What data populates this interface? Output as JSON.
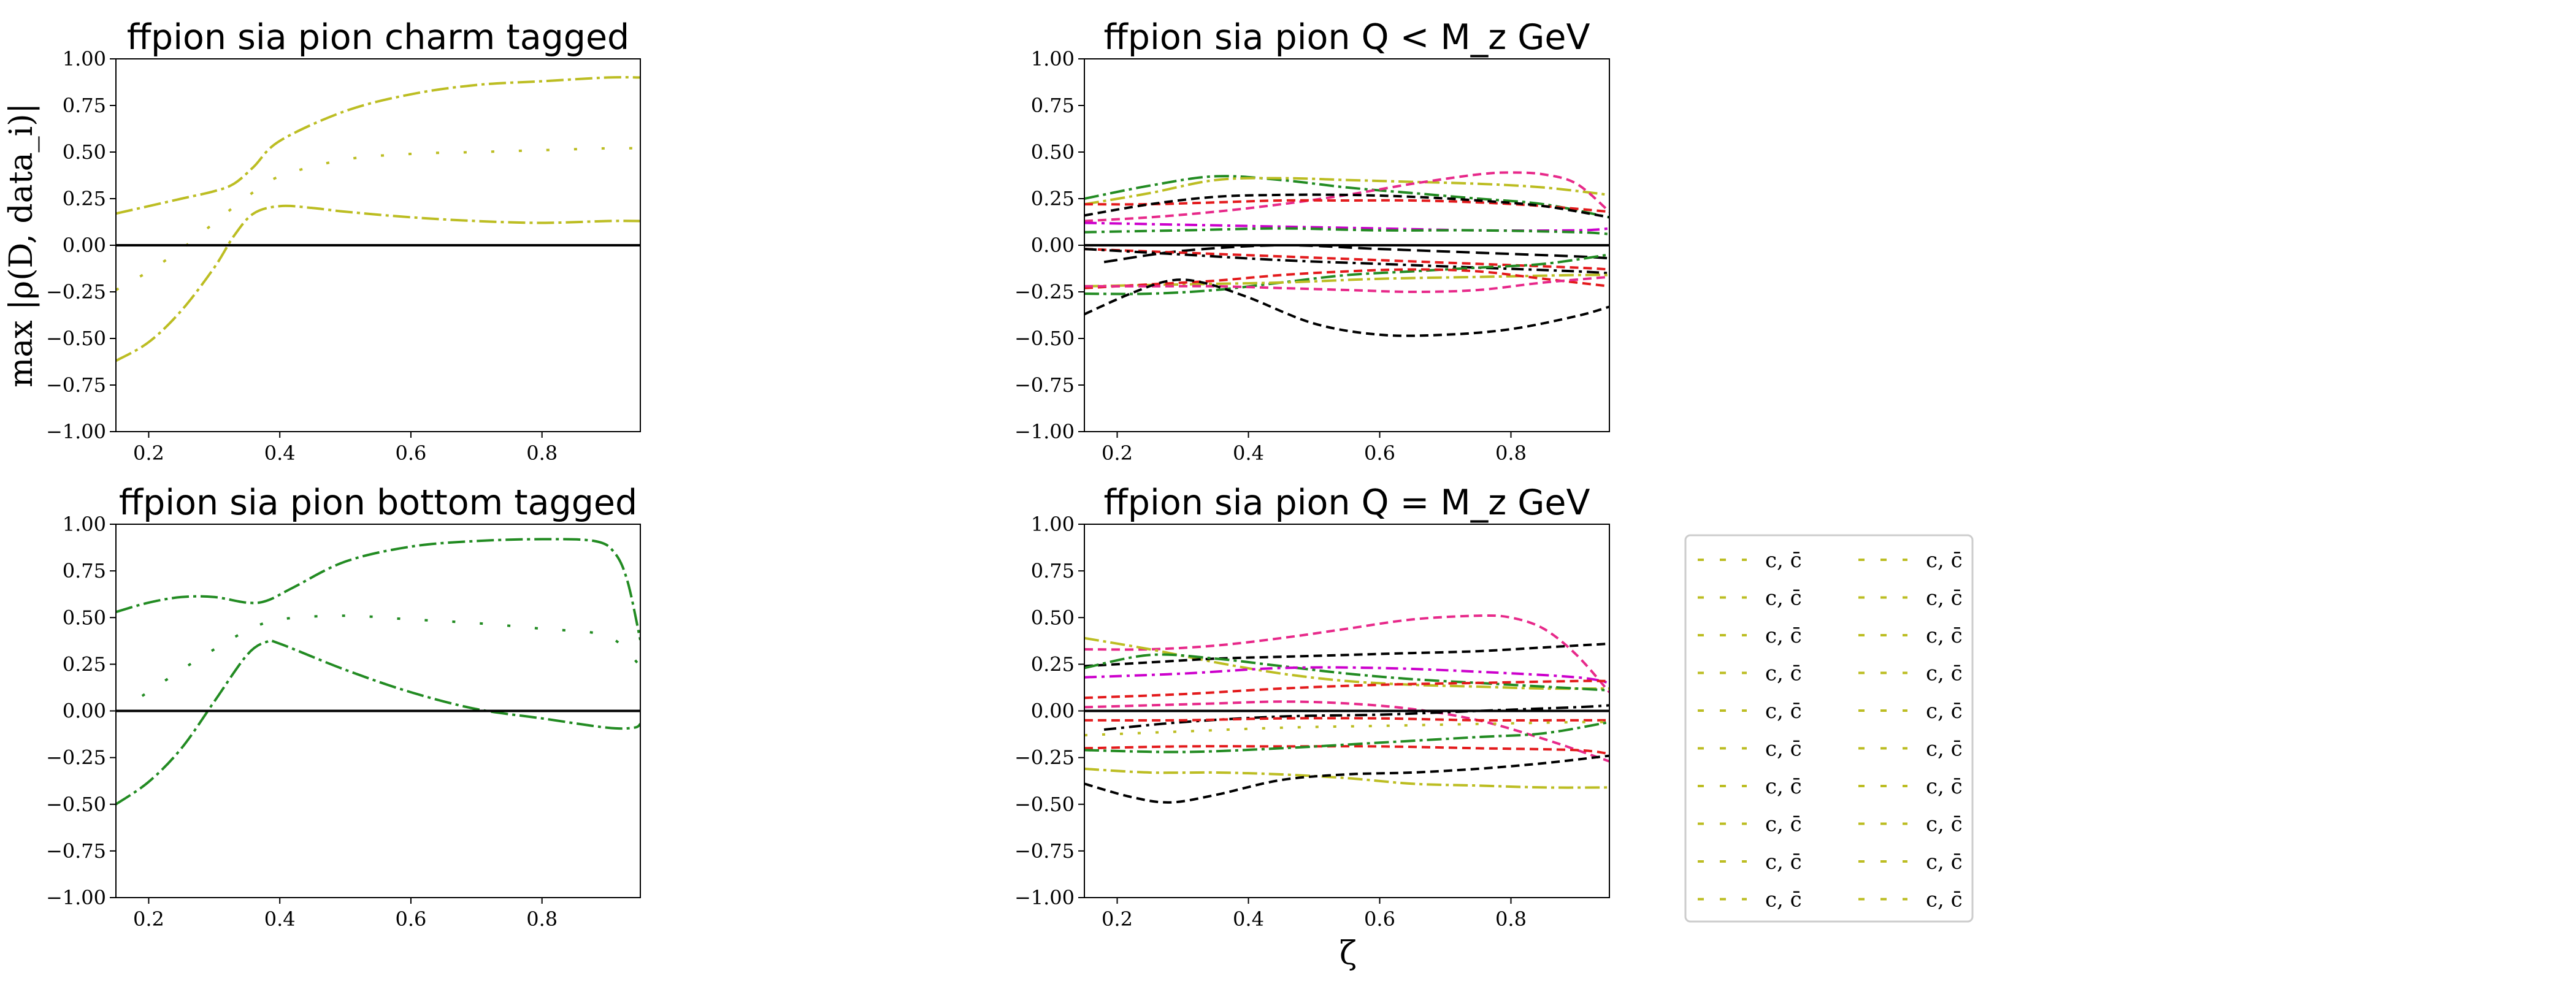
{
  "figure": {
    "ylabel": "max |ρ(D, data_i)|",
    "xlabel": "ζ"
  },
  "chart_data": [
    {
      "type": "line",
      "title": "ffpion sia pion charm tagged",
      "xlim": [
        0.15,
        0.95
      ],
      "ylim": [
        -1.0,
        1.0
      ],
      "xticks": [
        "0.2",
        "0.4",
        "0.6",
        "0.8"
      ],
      "yticks": [
        "−1.00",
        "−0.75",
        "−0.50",
        "−0.25",
        "0.00",
        "0.25",
        "0.50",
        "0.75",
        "1.00"
      ],
      "zero_line": true,
      "series": [
        {
          "color": "#bcbd22",
          "dash": "28,7,5,7",
          "x": [
            0.15,
            0.2,
            0.25,
            0.3,
            0.33,
            0.36,
            0.4,
            0.5,
            0.6,
            0.7,
            0.8,
            0.9,
            0.95
          ],
          "y": [
            0.17,
            0.21,
            0.25,
            0.29,
            0.33,
            0.42,
            0.56,
            0.72,
            0.81,
            0.86,
            0.88,
            0.9,
            0.9
          ]
        },
        {
          "color": "#bcbd22",
          "dash": "5,40",
          "x": [
            0.15,
            0.2,
            0.25,
            0.3,
            0.35,
            0.4,
            0.5,
            0.6,
            0.7,
            0.8,
            0.9,
            0.95
          ],
          "y": [
            -0.24,
            -0.14,
            -0.02,
            0.12,
            0.26,
            0.37,
            0.46,
            0.49,
            0.5,
            0.51,
            0.52,
            0.52
          ]
        },
        {
          "color": "#bcbd22",
          "dash": "28,7,5,7",
          "x": [
            0.15,
            0.2,
            0.25,
            0.3,
            0.33,
            0.36,
            0.4,
            0.45,
            0.5,
            0.6,
            0.7,
            0.8,
            0.9,
            0.95
          ],
          "y": [
            -0.62,
            -0.52,
            -0.35,
            -0.12,
            0.05,
            0.17,
            0.21,
            0.2,
            0.18,
            0.15,
            0.13,
            0.12,
            0.13,
            0.13
          ]
        }
      ]
    },
    {
      "type": "line",
      "title": "ffpion sia pion Q < M_z GeV",
      "xlim": [
        0.15,
        0.95
      ],
      "ylim": [
        -1.0,
        1.0
      ],
      "xticks": [
        "0.2",
        "0.4",
        "0.6",
        "0.8"
      ],
      "yticks": [
        "−1.00",
        "−0.75",
        "−0.50",
        "−0.25",
        "0.00",
        "0.25",
        "0.50",
        "0.75",
        "1.00"
      ],
      "zero_line": true,
      "series": [
        {
          "color": "#228B22",
          "dash": "24,7,5,7",
          "x": [
            0.15,
            0.25,
            0.35,
            0.45,
            0.55,
            0.65,
            0.75,
            0.85,
            0.95
          ],
          "y": [
            0.25,
            0.32,
            0.37,
            0.35,
            0.31,
            0.28,
            0.25,
            0.22,
            0.15
          ]
        },
        {
          "color": "#bcbd22",
          "dash": "24,7,5,7",
          "x": [
            0.15,
            0.25,
            0.35,
            0.45,
            0.55,
            0.65,
            0.75,
            0.85,
            0.95
          ],
          "y": [
            0.22,
            0.28,
            0.35,
            0.36,
            0.35,
            0.34,
            0.33,
            0.31,
            0.27
          ]
        },
        {
          "color": "#e7298a",
          "dash": "14,8",
          "x": [
            0.15,
            0.25,
            0.35,
            0.45,
            0.55,
            0.65,
            0.75,
            0.8,
            0.85,
            0.9,
            0.95
          ],
          "y": [
            0.13,
            0.15,
            0.18,
            0.22,
            0.27,
            0.33,
            0.38,
            0.39,
            0.38,
            0.33,
            0.18
          ]
        },
        {
          "color": "#e31a1c",
          "dash": "14,8",
          "x": [
            0.15,
            0.25,
            0.35,
            0.45,
            0.55,
            0.65,
            0.75,
            0.85,
            0.95
          ],
          "y": [
            0.22,
            0.22,
            0.23,
            0.24,
            0.24,
            0.24,
            0.23,
            0.21,
            0.18
          ]
        },
        {
          "color": "#000000",
          "dash": "14,8",
          "x": [
            0.15,
            0.25,
            0.35,
            0.45,
            0.55,
            0.65,
            0.75,
            0.85,
            0.95
          ],
          "y": [
            0.16,
            0.22,
            0.26,
            0.27,
            0.27,
            0.26,
            0.24,
            0.21,
            0.15
          ]
        },
        {
          "color": "#cc00cc",
          "dash": "20,8,5,8",
          "x": [
            0.15,
            0.3,
            0.45,
            0.6,
            0.75,
            0.9,
            0.95
          ],
          "y": [
            0.12,
            0.11,
            0.1,
            0.09,
            0.08,
            0.08,
            0.09
          ]
        },
        {
          "color": "#228B22",
          "dash": "20,8,5,8",
          "x": [
            0.15,
            0.3,
            0.45,
            0.6,
            0.75,
            0.9,
            0.95
          ],
          "y": [
            0.07,
            0.08,
            0.09,
            0.08,
            0.08,
            0.07,
            0.06
          ]
        },
        {
          "color": "#000000",
          "dash": "22,10",
          "x": [
            0.18,
            0.3,
            0.45,
            0.6,
            0.75,
            0.9,
            0.95
          ],
          "y": [
            -0.09,
            -0.03,
            0.0,
            -0.02,
            -0.04,
            -0.06,
            -0.07
          ]
        },
        {
          "color": "#e31a1c",
          "dash": "14,8",
          "x": [
            0.15,
            0.3,
            0.45,
            0.6,
            0.75,
            0.9,
            0.95
          ],
          "y": [
            -0.02,
            -0.04,
            -0.06,
            -0.08,
            -0.1,
            -0.12,
            -0.13
          ]
        },
        {
          "color": "#000000",
          "dash": "20,8,5,8",
          "x": [
            0.15,
            0.3,
            0.45,
            0.6,
            0.75,
            0.9,
            0.95
          ],
          "y": [
            -0.02,
            -0.05,
            -0.08,
            -0.1,
            -0.12,
            -0.14,
            -0.15
          ]
        },
        {
          "color": "#228B22",
          "dash": "24,7,5,7",
          "x": [
            0.15,
            0.25,
            0.35,
            0.45,
            0.55,
            0.65,
            0.75,
            0.85,
            0.95
          ],
          "y": [
            -0.26,
            -0.26,
            -0.24,
            -0.2,
            -0.16,
            -0.14,
            -0.12,
            -0.1,
            -0.05
          ]
        },
        {
          "color": "#bcbd22",
          "dash": "24,7,5,7",
          "x": [
            0.15,
            0.3,
            0.45,
            0.6,
            0.75,
            0.9,
            0.95
          ],
          "y": [
            -0.22,
            -0.21,
            -0.2,
            -0.18,
            -0.17,
            -0.16,
            -0.16
          ]
        },
        {
          "color": "#e31a1c",
          "dash": "14,8",
          "x": [
            0.15,
            0.25,
            0.35,
            0.45,
            0.55,
            0.65,
            0.75,
            0.85,
            0.95
          ],
          "y": [
            -0.23,
            -0.21,
            -0.19,
            -0.16,
            -0.14,
            -0.13,
            -0.14,
            -0.18,
            -0.22
          ]
        },
        {
          "color": "#e7298a",
          "dash": "14,8",
          "x": [
            0.15,
            0.25,
            0.35,
            0.45,
            0.55,
            0.65,
            0.75,
            0.85,
            0.95
          ],
          "y": [
            -0.22,
            -0.22,
            -0.22,
            -0.23,
            -0.24,
            -0.25,
            -0.24,
            -0.2,
            -0.17
          ]
        },
        {
          "color": "#000000",
          "dash": "14,8",
          "x": [
            0.15,
            0.22,
            0.28,
            0.33,
            0.4,
            0.5,
            0.6,
            0.7,
            0.8,
            0.9,
            0.95
          ],
          "y": [
            -0.37,
            -0.26,
            -0.19,
            -0.2,
            -0.28,
            -0.42,
            -0.48,
            -0.48,
            -0.45,
            -0.38,
            -0.33
          ]
        }
      ]
    },
    {
      "type": "line",
      "title": "ffpion sia pion bottom tagged",
      "xlim": [
        0.15,
        0.95
      ],
      "ylim": [
        -1.0,
        1.0
      ],
      "xticks": [
        "0.2",
        "0.4",
        "0.6",
        "0.8"
      ],
      "yticks": [
        "−1.00",
        "−0.75",
        "−0.50",
        "−0.25",
        "0.00",
        "0.25",
        "0.50",
        "0.75",
        "1.00"
      ],
      "zero_line": true,
      "series": [
        {
          "color": "#228B22",
          "dash": "28,7,5,7",
          "x": [
            0.15,
            0.2,
            0.25,
            0.3,
            0.35,
            0.38,
            0.42,
            0.5,
            0.6,
            0.7,
            0.8,
            0.88,
            0.91,
            0.93,
            0.95
          ],
          "y": [
            0.53,
            0.58,
            0.61,
            0.61,
            0.58,
            0.59,
            0.66,
            0.8,
            0.88,
            0.91,
            0.92,
            0.91,
            0.85,
            0.7,
            0.38
          ]
        },
        {
          "color": "#228B22",
          "dash": "5,40",
          "x": [
            0.19,
            0.25,
            0.3,
            0.35,
            0.4,
            0.5,
            0.6,
            0.7,
            0.8,
            0.9,
            0.95
          ],
          "y": [
            0.08,
            0.22,
            0.33,
            0.43,
            0.49,
            0.51,
            0.49,
            0.47,
            0.44,
            0.4,
            0.24
          ]
        },
        {
          "color": "#228B22",
          "dash": "28,7,5,7",
          "x": [
            0.15,
            0.2,
            0.25,
            0.3,
            0.35,
            0.38,
            0.4,
            0.5,
            0.6,
            0.7,
            0.8,
            0.9,
            0.94,
            0.95
          ],
          "y": [
            -0.5,
            -0.38,
            -0.2,
            0.05,
            0.3,
            0.37,
            0.36,
            0.22,
            0.1,
            0.01,
            -0.04,
            -0.09,
            -0.09,
            -0.07
          ]
        }
      ]
    },
    {
      "type": "line",
      "title": "ffpion sia pion Q = M_z GeV",
      "xlim": [
        0.15,
        0.95
      ],
      "ylim": [
        -1.0,
        1.0
      ],
      "xticks": [
        "0.2",
        "0.4",
        "0.6",
        "0.8"
      ],
      "yticks": [
        "−1.00",
        "−0.75",
        "−0.50",
        "−0.25",
        "0.00",
        "0.25",
        "0.50",
        "0.75",
        "1.00"
      ],
      "zero_line": true,
      "series": [
        {
          "color": "#e7298a",
          "dash": "14,8",
          "x": [
            0.15,
            0.25,
            0.35,
            0.45,
            0.55,
            0.65,
            0.75,
            0.8,
            0.85,
            0.9,
            0.95
          ],
          "y": [
            0.33,
            0.33,
            0.35,
            0.39,
            0.44,
            0.49,
            0.51,
            0.5,
            0.44,
            0.3,
            0.1
          ]
        },
        {
          "color": "#bcbd22",
          "dash": "24,7,5,7",
          "x": [
            0.15,
            0.25,
            0.35,
            0.45,
            0.55,
            0.65,
            0.75,
            0.85,
            0.95
          ],
          "y": [
            0.39,
            0.33,
            0.26,
            0.2,
            0.16,
            0.14,
            0.13,
            0.12,
            0.12
          ]
        },
        {
          "color": "#000000",
          "dash": "14,8",
          "x": [
            0.15,
            0.25,
            0.35,
            0.45,
            0.55,
            0.65,
            0.75,
            0.85,
            0.95
          ],
          "y": [
            0.24,
            0.26,
            0.28,
            0.29,
            0.3,
            0.31,
            0.32,
            0.34,
            0.36
          ]
        },
        {
          "color": "#228B22",
          "dash": "24,7,5,7",
          "x": [
            0.15,
            0.25,
            0.35,
            0.45,
            0.55,
            0.65,
            0.75,
            0.85,
            0.95
          ],
          "y": [
            0.23,
            0.3,
            0.28,
            0.24,
            0.2,
            0.17,
            0.15,
            0.13,
            0.11
          ]
        },
        {
          "color": "#cc00cc",
          "dash": "20,8,5,8",
          "x": [
            0.15,
            0.3,
            0.45,
            0.6,
            0.75,
            0.9,
            0.95
          ],
          "y": [
            0.18,
            0.2,
            0.23,
            0.23,
            0.21,
            0.18,
            0.15
          ]
        },
        {
          "color": "#e31a1c",
          "dash": "14,8",
          "x": [
            0.15,
            0.3,
            0.45,
            0.6,
            0.75,
            0.9,
            0.95
          ],
          "y": [
            0.07,
            0.09,
            0.12,
            0.14,
            0.15,
            0.16,
            0.16
          ]
        },
        {
          "color": "#e7298a",
          "dash": "14,8",
          "x": [
            0.15,
            0.25,
            0.35,
            0.45,
            0.55,
            0.65,
            0.75,
            0.85,
            0.95
          ],
          "y": [
            0.02,
            0.03,
            0.04,
            0.05,
            0.04,
            0.01,
            -0.05,
            -0.15,
            -0.27
          ]
        },
        {
          "color": "#000000",
          "dash": "20,8,5,8",
          "x": [
            0.18,
            0.3,
            0.45,
            0.6,
            0.75,
            0.9,
            0.95
          ],
          "y": [
            -0.1,
            -0.06,
            -0.03,
            -0.02,
            0.0,
            0.02,
            0.03
          ]
        },
        {
          "color": "#e31a1c",
          "dash": "14,8",
          "x": [
            0.15,
            0.3,
            0.45,
            0.6,
            0.75,
            0.9,
            0.95
          ],
          "y": [
            -0.05,
            -0.05,
            -0.04,
            -0.04,
            -0.05,
            -0.05,
            -0.05
          ]
        },
        {
          "color": "#bcbd22",
          "dash": "5,24",
          "x": [
            0.15,
            0.3,
            0.45,
            0.6,
            0.75,
            0.9,
            0.95
          ],
          "y": [
            -0.13,
            -0.11,
            -0.09,
            -0.08,
            -0.07,
            -0.06,
            -0.06
          ]
        },
        {
          "color": "#e31a1c",
          "dash": "14,8",
          "x": [
            0.15,
            0.3,
            0.45,
            0.6,
            0.75,
            0.9,
            0.95
          ],
          "y": [
            -0.2,
            -0.19,
            -0.19,
            -0.19,
            -0.2,
            -0.21,
            -0.23
          ]
        },
        {
          "color": "#228B22",
          "dash": "24,7,5,7",
          "x": [
            0.15,
            0.3,
            0.45,
            0.6,
            0.75,
            0.85,
            0.95
          ],
          "y": [
            -0.21,
            -0.22,
            -0.2,
            -0.17,
            -0.14,
            -0.12,
            -0.06
          ]
        },
        {
          "color": "#bcbd22",
          "dash": "24,7,5,7",
          "x": [
            0.15,
            0.25,
            0.35,
            0.45,
            0.55,
            0.65,
            0.75,
            0.85,
            0.95
          ],
          "y": [
            -0.31,
            -0.33,
            -0.33,
            -0.34,
            -0.36,
            -0.39,
            -0.4,
            -0.41,
            -0.41
          ]
        },
        {
          "color": "#000000",
          "dash": "14,8",
          "x": [
            0.15,
            0.22,
            0.28,
            0.35,
            0.45,
            0.55,
            0.65,
            0.75,
            0.85,
            0.95
          ],
          "y": [
            -0.39,
            -0.46,
            -0.49,
            -0.45,
            -0.37,
            -0.34,
            -0.33,
            -0.31,
            -0.28,
            -0.24
          ]
        }
      ]
    }
  ],
  "legend": {
    "columns": 2,
    "rows": 10,
    "entry_label": "c, c̄",
    "entry_color": "#bcbd22"
  }
}
